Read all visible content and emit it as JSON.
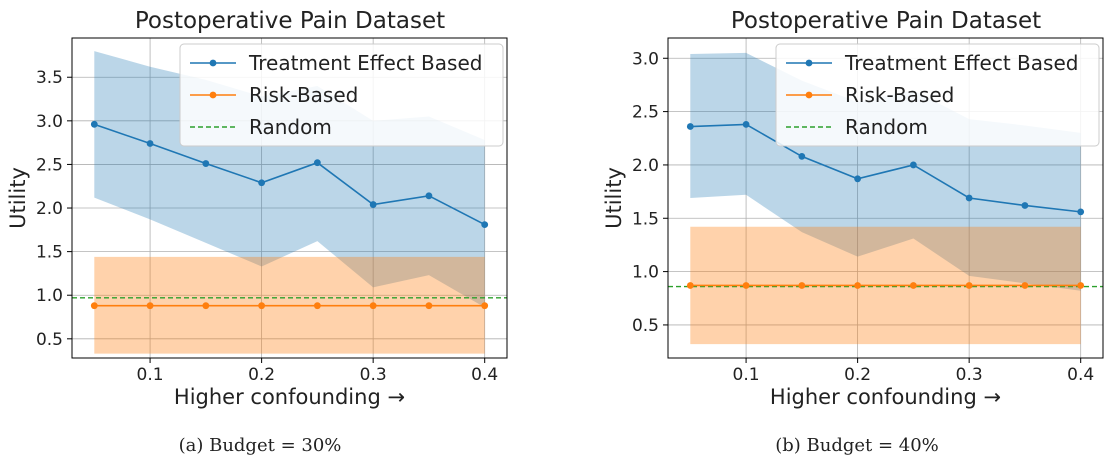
{
  "chart_data": [
    {
      "type": "line",
      "title": "Postoperative Pain Dataset",
      "xlabel": "Higher confounding →",
      "ylabel": "Utility",
      "caption": "(a) Budget = 30%",
      "x": [
        0.05,
        0.1,
        0.15,
        0.2,
        0.25,
        0.3,
        0.35,
        0.4
      ],
      "xlim": [
        0.03,
        0.42
      ],
      "ylim": [
        0.28,
        3.95
      ],
      "xticks": [
        "0.1",
        "0.2",
        "0.3",
        "0.4"
      ],
      "yticks": [
        "0.5",
        "1.0",
        "1.5",
        "2.0",
        "2.5",
        "3.0",
        "3.5"
      ],
      "grid": true,
      "legend": "upper right",
      "series": [
        {
          "name": "Treatment Effect Based",
          "color": "#1f77b4",
          "values": [
            2.96,
            2.74,
            2.51,
            2.29,
            2.52,
            2.04,
            2.14,
            1.81
          ],
          "band_upper": [
            3.8,
            3.62,
            3.47,
            3.28,
            3.4,
            3.0,
            3.05,
            2.78
          ],
          "band_lower": [
            2.12,
            1.87,
            1.6,
            1.33,
            1.62,
            1.09,
            1.23,
            0.86
          ]
        },
        {
          "name": "Risk-Based",
          "color": "#ff7f0e",
          "values": [
            0.88,
            0.88,
            0.88,
            0.88,
            0.88,
            0.88,
            0.88,
            0.88
          ],
          "band_upper": [
            1.44,
            1.44,
            1.44,
            1.44,
            1.44,
            1.44,
            1.44,
            1.44
          ],
          "band_lower": [
            0.33,
            0.33,
            0.33,
            0.33,
            0.33,
            0.33,
            0.33,
            0.33
          ]
        },
        {
          "name": "Random",
          "color": "#2ca02c",
          "style": "dashed",
          "value": 0.97
        }
      ]
    },
    {
      "type": "line",
      "title": "Postoperative Pain Dataset",
      "xlabel": "Higher confounding →",
      "ylabel": "Utility",
      "caption": "(b) Budget = 40%",
      "x": [
        0.05,
        0.1,
        0.15,
        0.2,
        0.25,
        0.3,
        0.35,
        0.4
      ],
      "xlim": [
        0.03,
        0.42
      ],
      "ylim": [
        0.19,
        3.19
      ],
      "xticks": [
        "0.1",
        "0.2",
        "0.3",
        "0.4"
      ],
      "yticks": [
        "0.5",
        "1.0",
        "1.5",
        "2.0",
        "2.5",
        "3.0"
      ],
      "grid": true,
      "legend": "upper right",
      "series": [
        {
          "name": "Treatment Effect Based",
          "color": "#1f77b4",
          "values": [
            2.36,
            2.38,
            2.08,
            1.87,
            2.0,
            1.69,
            1.62,
            1.56
          ],
          "band_upper": [
            3.04,
            3.05,
            2.79,
            2.59,
            2.7,
            2.43,
            2.37,
            2.3
          ],
          "band_lower": [
            1.69,
            1.72,
            1.37,
            1.14,
            1.31,
            0.96,
            0.89,
            0.82
          ]
        },
        {
          "name": "Risk-Based",
          "color": "#ff7f0e",
          "values": [
            0.87,
            0.87,
            0.87,
            0.87,
            0.87,
            0.87,
            0.87,
            0.87
          ],
          "band_upper": [
            1.42,
            1.42,
            1.42,
            1.42,
            1.42,
            1.42,
            1.42,
            1.42
          ],
          "band_lower": [
            0.32,
            0.32,
            0.32,
            0.32,
            0.32,
            0.32,
            0.32,
            0.32
          ]
        },
        {
          "name": "Random",
          "color": "#2ca02c",
          "style": "dashed",
          "value": 0.86
        }
      ]
    }
  ]
}
